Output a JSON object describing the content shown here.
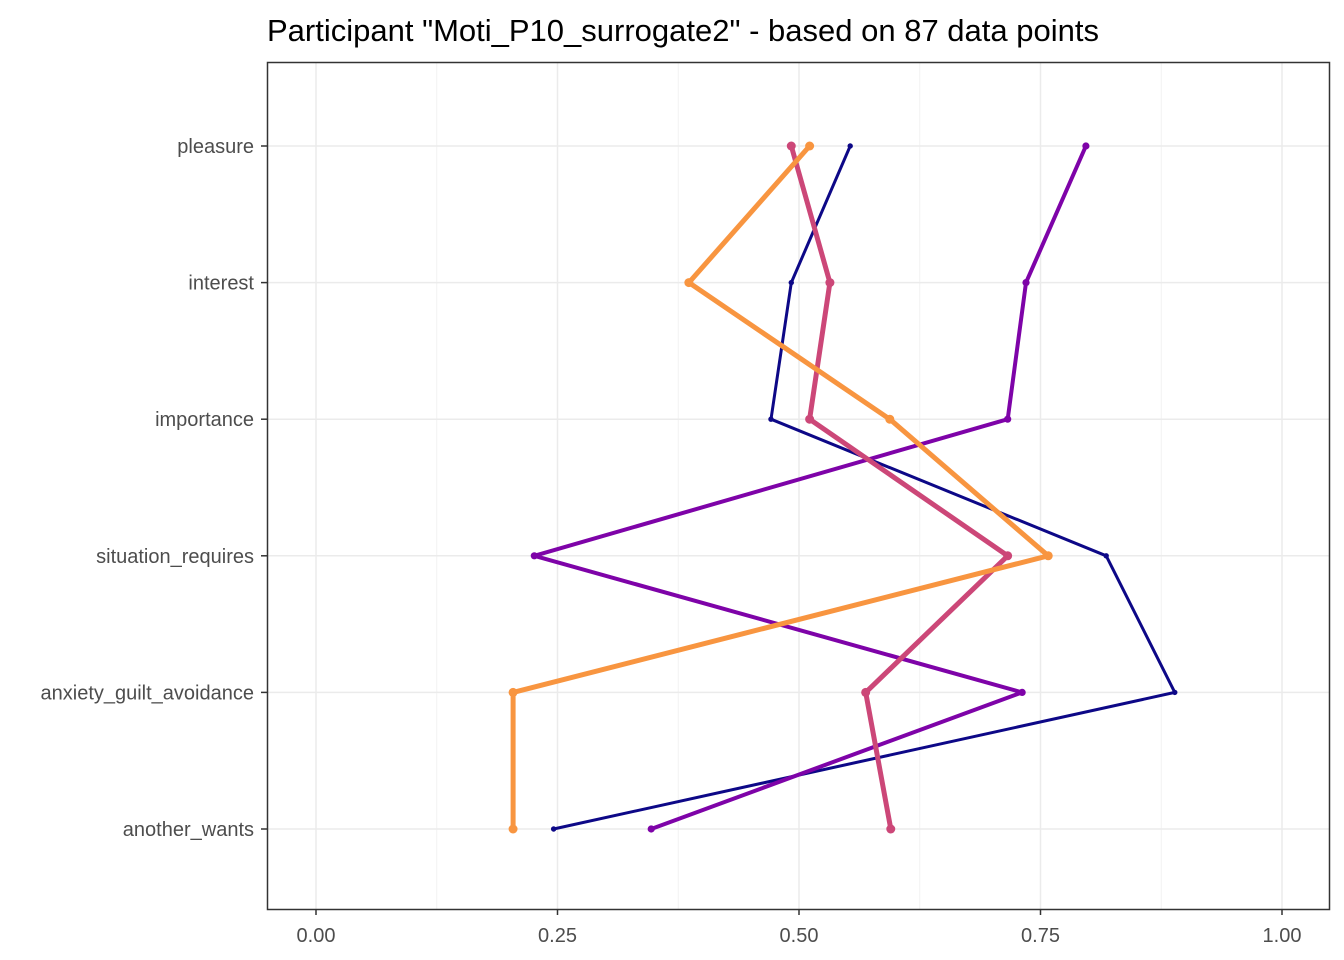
{
  "chart_data": {
    "type": "line",
    "title": "Participant \"Moti_P10_surrogate2\" - based on 87 data points",
    "xlabel": "",
    "ylabel": "",
    "xlim": [
      -0.1,
      1.02
    ],
    "x_ticks": [
      0.0,
      0.25,
      0.5,
      0.75,
      1.0
    ],
    "x_tick_labels": [
      "0.00",
      "0.25",
      "0.50",
      "0.75",
      "1.00"
    ],
    "categories": [
      "pleasure",
      "interest",
      "importance",
      "situation_requires",
      "anxiety_guilt_avoidance",
      "another_wants"
    ],
    "grid": true,
    "legend": "none",
    "series": [
      {
        "color": "#0d0887",
        "width": 3,
        "values": [
          0.553,
          0.492,
          0.471,
          0.818,
          0.889,
          0.246
        ]
      },
      {
        "color": "#7e03a8",
        "width": 4,
        "values": [
          0.797,
          0.735,
          0.716,
          0.226,
          0.731,
          0.347
        ]
      },
      {
        "color": "#cc4778",
        "width": 5,
        "values": [
          0.492,
          0.532,
          0.511,
          0.716,
          0.569,
          0.595
        ]
      },
      {
        "color": "#f89540",
        "width": 5,
        "values": [
          0.511,
          0.386,
          0.594,
          0.758,
          0.204,
          0.204
        ]
      }
    ]
  }
}
